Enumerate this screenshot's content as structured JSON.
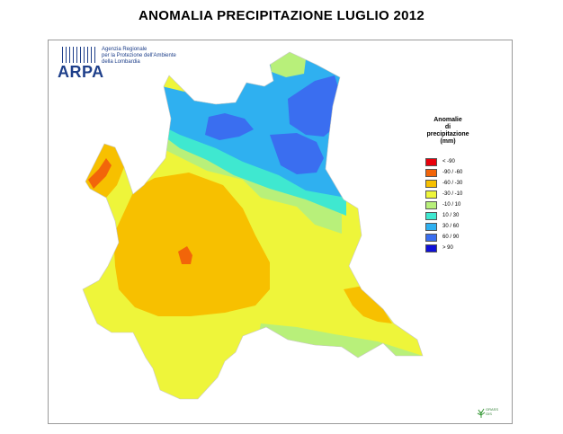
{
  "title": "ANOMALIA PRECIPITAZIONE LUGLIO 2012",
  "logo": {
    "text": "ARPA",
    "org_line1": "Agenzia Regionale",
    "org_line2": "per la Protezione dell'Ambiente",
    "org_line3": "della Lombardia",
    "color": "#1e3f8a"
  },
  "legend": {
    "title_line1": "Anomalie",
    "title_line2": "di",
    "title_line3": "precipitazione",
    "title_line4": "(mm)",
    "items": [
      {
        "label": "< -90",
        "color": "#e8000b"
      },
      {
        "label": "-90 / -60",
        "color": "#f2650a"
      },
      {
        "label": "-60 / -30",
        "color": "#f7c000"
      },
      {
        "label": "-30 / -10",
        "color": "#eef53a"
      },
      {
        "label": "-10 / 10",
        "color": "#b8f07a"
      },
      {
        "label": "10 / 30",
        "color": "#3fe8d0"
      },
      {
        "label": "30 / 60",
        "color": "#2fb0f0"
      },
      {
        "label": "60 / 90",
        "color": "#3a6ef0"
      },
      {
        "label": "> 90",
        "color": "#1010d8"
      }
    ]
  },
  "grass": {
    "label_line1": "GRASS",
    "label_line2": "GIS",
    "icon": "grass-gis-icon"
  }
}
